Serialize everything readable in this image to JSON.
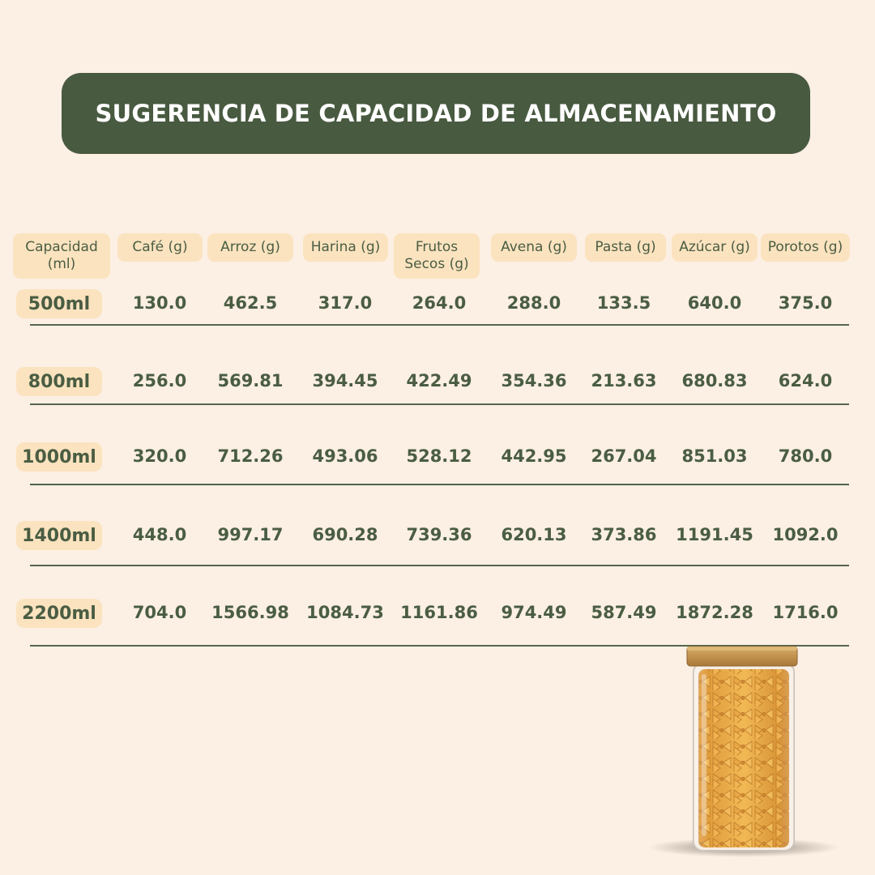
{
  "title": "SUGERENCIA DE CAPACIDAD DE ALMACENAMIENTO",
  "headers": [
    "Capacidad\n(ml)",
    "Café (g)",
    "Arroz (g)",
    "Harina (g)",
    "Frutos\nSecos (g)",
    "Avena (g)",
    "Pasta (g)",
    "Azúcar (g)",
    "Porotos (g)"
  ],
  "rows": [
    {
      "capacity": "500ml",
      "values": [
        "130.0",
        "462.5",
        "317.0",
        "264.0",
        "288.0",
        "133.5",
        "640.0",
        "375.0"
      ]
    },
    {
      "capacity": "800ml",
      "values": [
        "256.0",
        "569.81",
        "394.45",
        "422.49",
        "354.36",
        "213.63",
        "680.83",
        "624.0"
      ]
    },
    {
      "capacity": "1000ml",
      "values": [
        "320.0",
        "712.26",
        "493.06",
        "528.12",
        "442.95",
        "267.04",
        "851.03",
        "780.0"
      ]
    },
    {
      "capacity": "1400ml",
      "values": [
        "448.0",
        "997.17",
        "690.28",
        "739.36",
        "620.13",
        "373.86",
        "1191.45",
        "1092.0"
      ]
    },
    {
      "capacity": "2200ml",
      "values": [
        "704.0",
        "1566.98",
        "1084.73",
        "1161.86",
        "974.49",
        "587.49",
        "1872.28",
        "1716.0"
      ]
    }
  ],
  "colors": {
    "background": "#fcefe4",
    "banner": "#485a40",
    "pill": "#fbe3bf",
    "text": "#4a5d43"
  },
  "image": "glass-jar-with-farfalle-pasta"
}
